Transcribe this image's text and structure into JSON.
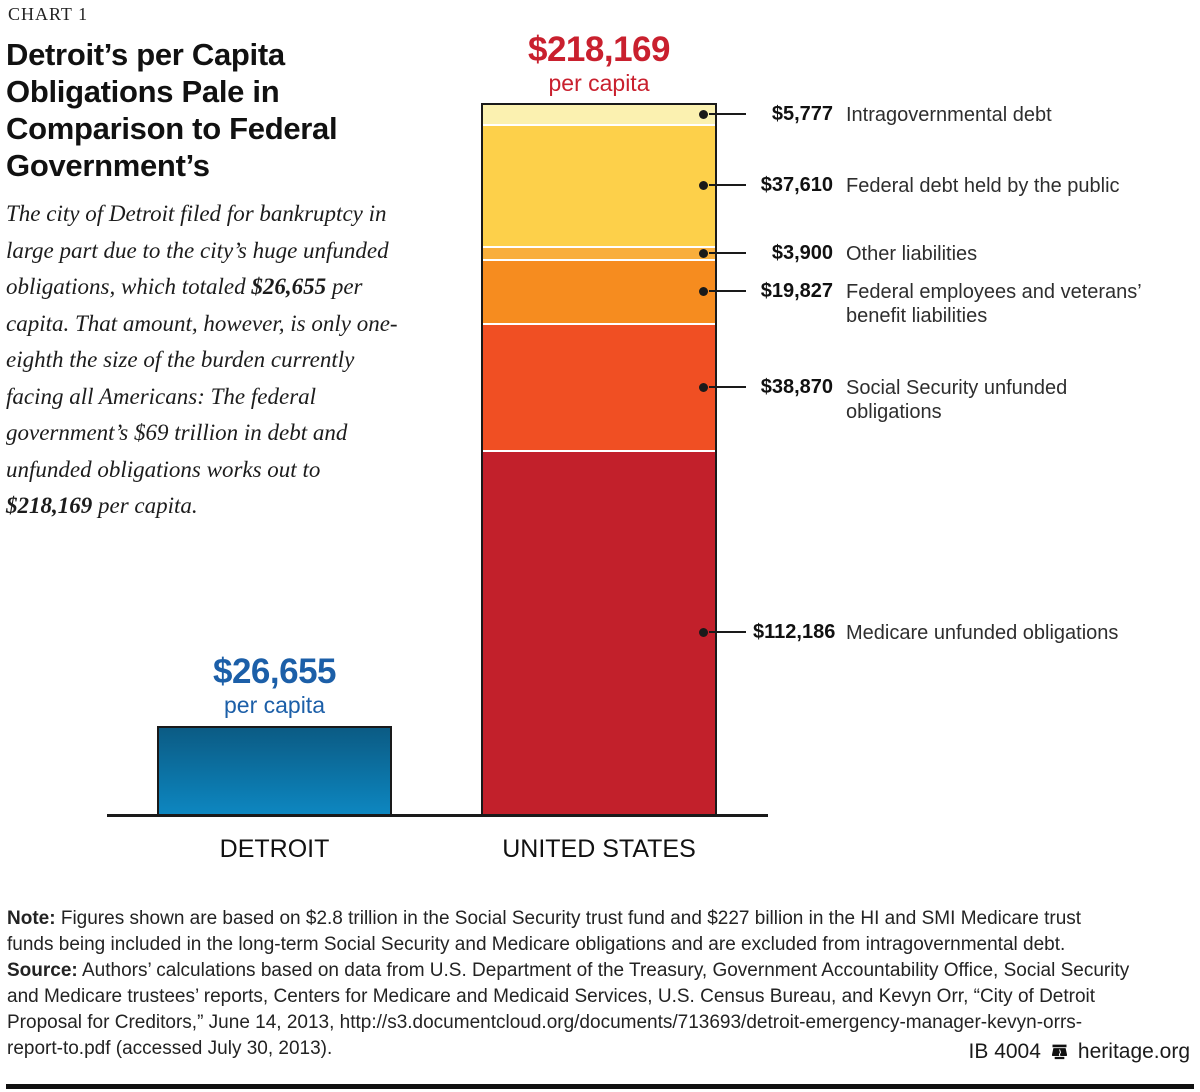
{
  "kicker": "CHART 1",
  "title": "Detroit’s per Capita Obligations Pale in Comparison to Federal Government’s",
  "description": {
    "part1": "The city of Detroit filed for bankruptcy in large part due to the city’s huge unfunded obligations, which totaled ",
    "bold1": "$26,655",
    "part2": " per capita. That amount, however, is only one-eighth the size of the burden currently facing all Americans: The federal government’s $69 trillion in debt and unfunded obligations works out to ",
    "bold2": "$218,169",
    "part3": " per capita."
  },
  "chart_data": {
    "type": "bar",
    "subtype": "stacked",
    "title": "Detroit’s per Capita Obligations Pale in Comparison to Federal Government’s",
    "categories": [
      "DETROIT",
      "UNITED STATES"
    ],
    "ylim": [
      0,
      218169
    ],
    "grid": false,
    "legend_position": "callouts-right",
    "bars": [
      {
        "category": "DETROIT",
        "total": 26655,
        "total_label": "$26,655",
        "sublabel": "per capita",
        "label_color": "#1c5fa8",
        "fill_gradient_top": "#0b5b84",
        "fill_gradient_bottom": "#0d87c1"
      },
      {
        "category": "UNITED STATES",
        "total": 218169,
        "total_label": "$218,169",
        "sublabel": "per capita",
        "label_color": "#c9202e"
      }
    ],
    "us_segments_top_to_bottom": [
      {
        "label": "Intragovernmental debt",
        "value": 5777,
        "value_label": "$5,777",
        "color": "#fbf1b0"
      },
      {
        "label": "Federal debt held by the public",
        "value": 37610,
        "value_label": "$37,610",
        "color": "#fdd04a"
      },
      {
        "label": "Other liabilities",
        "value": 3900,
        "value_label": "$3,900",
        "color": "#f9ae3b"
      },
      {
        "label": "Federal employees and veterans’ benefit liabilities",
        "value": 19827,
        "value_label": "$19,827",
        "color": "#f68c1f"
      },
      {
        "label": "Social Security unfunded obligations",
        "value": 38870,
        "value_label": "$38,870",
        "color": "#f04f23"
      },
      {
        "label": "Medicare unfunded obligations",
        "value": 112186,
        "value_label": "$112,186",
        "color": "#c2202b"
      }
    ]
  },
  "footnotes": {
    "note_label": "Note:",
    "note_text": "Figures shown are based on $2.8 trillion in the Social Security trust fund and $227 billion in the HI and SMI Medicare trust funds being included in the long-term Social Security and Medicare obligations and are excluded from intragovernmental debt.",
    "source_label": "Source:",
    "source_text": "Authors’ calculations based on data from U.S. Department of the Treasury, Government Accountability Office, Social Security and Medicare trustees’ reports, Centers for Medicare and Medicaid Services, U.S. Census Bureau, and Kevyn Orr, “City of Detroit Proposal for Creditors,” June 14, 2013, http://s3.documentcloud.org/documents/713693/detroit-emergency-manager-kevyn-orrs-report-to.pdf (accessed July 30, 2013)."
  },
  "footer": {
    "report_id": "IB 4004",
    "site": "heritage.org",
    "logo": "heritage-bell-icon"
  }
}
